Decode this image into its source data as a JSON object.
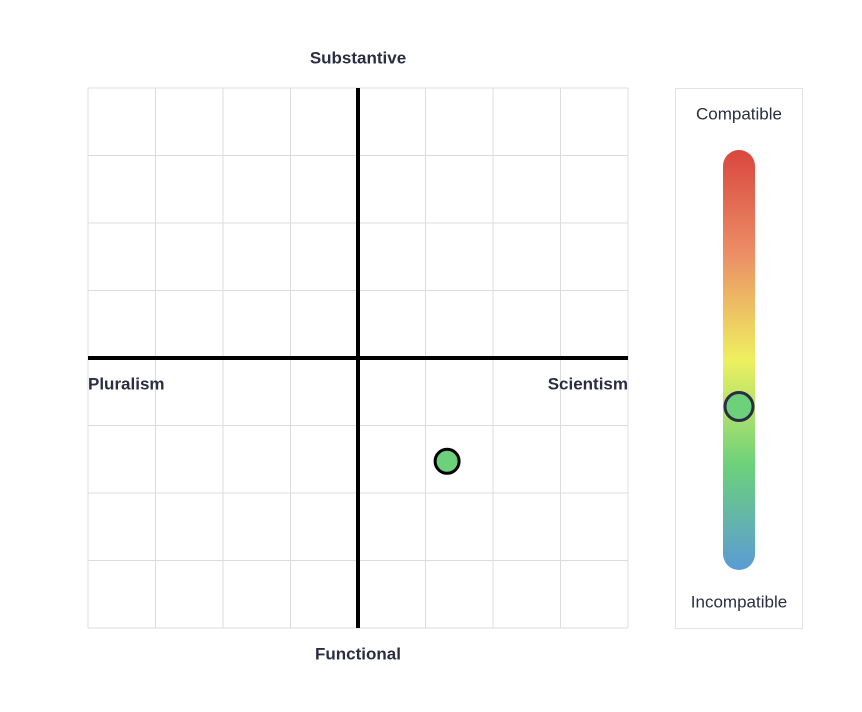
{
  "chart_data": [
    {
      "type": "scatter",
      "top_label": "Substantive",
      "bottom_label": "Functional",
      "left_label": "Pluralism",
      "right_label": "Scientism",
      "x": [
        1.32
      ],
      "y": [
        -1.53
      ],
      "color": "#6cd17a",
      "xlim": [
        -4,
        4
      ],
      "ylim": [
        -4,
        4
      ],
      "xticks": [
        -4,
        -3,
        -2,
        -1,
        0,
        1,
        2,
        3,
        4
      ],
      "yticks": [
        -4,
        -3,
        -2,
        -1,
        0,
        1,
        2,
        3,
        4
      ],
      "grid": true
    },
    {
      "type": "gauge",
      "top_label": "Compatible",
      "bottom_label": "Incompatible",
      "value": 0.38,
      "ylim": [
        0,
        1
      ],
      "color": "#6cd17a",
      "gradient": [
        "#d9473f",
        "#ec8f66",
        "#eef060",
        "#6cd17a",
        "#5b9bd5"
      ]
    }
  ]
}
